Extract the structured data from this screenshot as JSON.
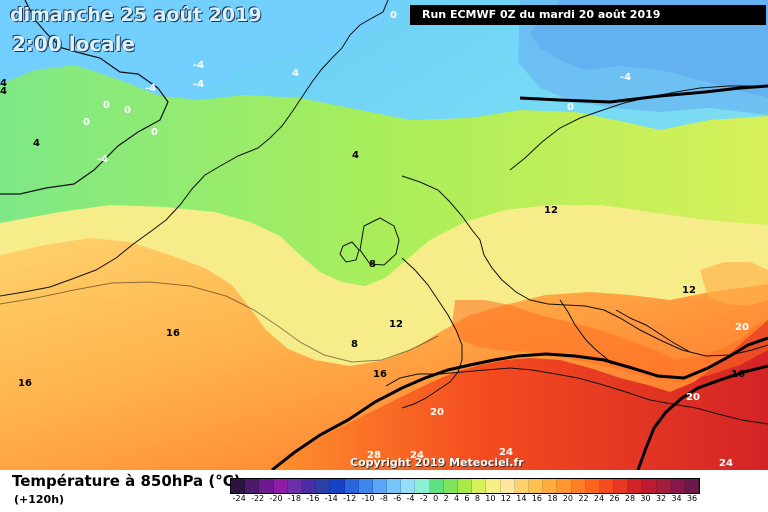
{
  "header": {
    "date_label": "dimanche 25 août 2019",
    "local_time_label": "2:00 locale",
    "run_label": "Run ECMWF 0Z du mardi 20 août 2019"
  },
  "map": {
    "labels": [
      {
        "text": "0"
      },
      {
        "text": "4"
      },
      {
        "text": "-4"
      },
      {
        "text": "-4"
      },
      {
        "text": "-4"
      },
      {
        "text": "4"
      },
      {
        "text": "-4"
      },
      {
        "text": "4"
      },
      {
        "text": "4"
      },
      {
        "text": "0"
      },
      {
        "text": "0"
      },
      {
        "text": "0"
      },
      {
        "text": "0"
      },
      {
        "text": "-4"
      },
      {
        "text": "0"
      },
      {
        "text": "4"
      },
      {
        "text": "4"
      },
      {
        "text": "12"
      },
      {
        "text": "8"
      },
      {
        "text": "12"
      },
      {
        "text": "12"
      },
      {
        "text": "20"
      },
      {
        "text": "16"
      },
      {
        "text": "8"
      },
      {
        "text": "16"
      },
      {
        "text": "16"
      },
      {
        "text": "16"
      },
      {
        "text": "20"
      },
      {
        "text": "20"
      },
      {
        "text": "28"
      },
      {
        "text": "24"
      },
      {
        "text": "24"
      },
      {
        "text": "24"
      }
    ],
    "copyright": "Copyright 2019 Meteociel.fr"
  },
  "legend": {
    "title": "Température à 850hPa (°C)",
    "subtitle": "(+120h)",
    "scale_colors": [
      "#2a1440",
      "#4d1969",
      "#6b1b8e",
      "#8f1ca4",
      "#6c2fa8",
      "#4b2ea3",
      "#2c3fa7",
      "#1543c6",
      "#2865dd",
      "#3d86ee",
      "#59a6f7",
      "#78c5fb",
      "#95def8",
      "#8af1d7",
      "#5fe17f",
      "#7ee65d",
      "#a7ea49",
      "#d8f059",
      "#f8ef84",
      "#ffe79f",
      "#ffd26d",
      "#ffc04d",
      "#ffac3f",
      "#ff962f",
      "#ff7e26",
      "#ff6420",
      "#f44b1f",
      "#e73622",
      "#d42326",
      "#bd1b30",
      "#a31d3e",
      "#86184b",
      "#69194b"
    ],
    "scale_labels": [
      "-24",
      "-22",
      "-20",
      "-18",
      "-16",
      "-14",
      "-12",
      "-10",
      "-8",
      "-6",
      "-4",
      "-2",
      "0",
      "2",
      "4",
      "6",
      "8",
      "10",
      "12",
      "14",
      "16",
      "18",
      "20",
      "22",
      "24",
      "26",
      "28",
      "30",
      "32",
      "34",
      "36"
    ]
  }
}
